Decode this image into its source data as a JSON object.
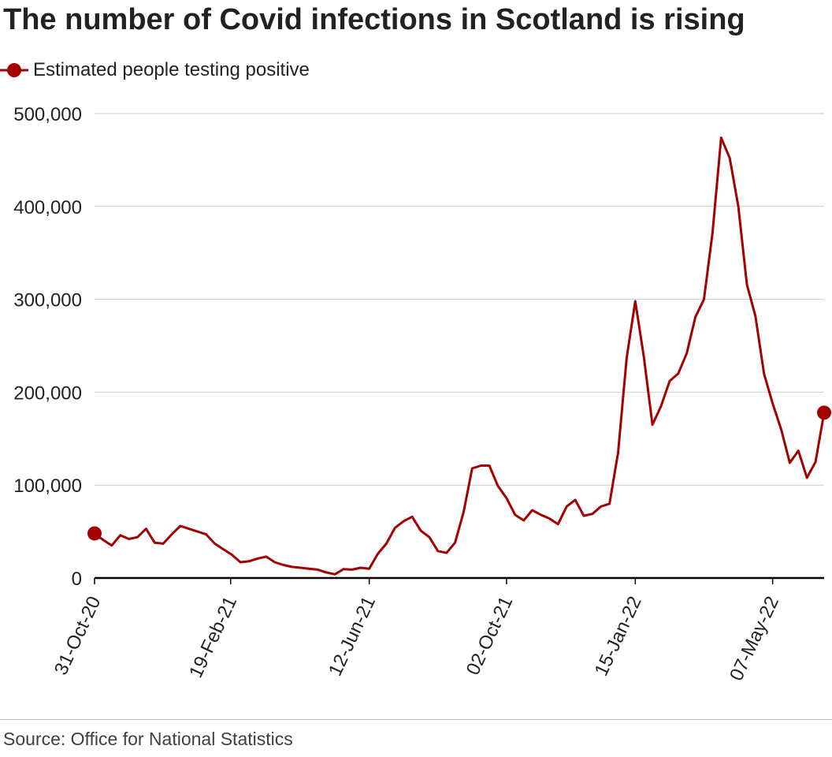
{
  "title": "The number of Covid infections in Scotland is rising",
  "legend": {
    "label": "Estimated people testing positive",
    "marker_color": "#a30000"
  },
  "source": "Source: Office for National Statistics",
  "colors": {
    "line": "#a30000",
    "grid": "#cccccc",
    "axis": "#000000"
  },
  "chart_data": {
    "type": "line",
    "title": "The number of Covid infections in Scotland is rising",
    "xlabel": "",
    "ylabel": "",
    "ylim": [
      0,
      500000
    ],
    "yticks": [
      0,
      100000,
      200000,
      300000,
      400000,
      500000
    ],
    "ytick_labels": [
      "0",
      "100,000",
      "200,000",
      "300,000",
      "400,000",
      "500,000"
    ],
    "xlim": [
      "2020-10-31",
      "2022-06-18"
    ],
    "xticks": [
      "2020-10-31",
      "2021-02-19",
      "2021-06-12",
      "2021-10-02",
      "2022-01-15",
      "2022-05-07"
    ],
    "xtick_labels": [
      "31-Oct-20",
      "19-Feb-21",
      "12-Jun-21",
      "02-Oct-21",
      "15-Jan-22",
      "07-May-22"
    ],
    "grid": true,
    "legend_position": "top-left",
    "endpoint_markers": true,
    "series": [
      {
        "name": "Estimated people testing positive",
        "x": [
          "2020-10-31",
          "2020-11-07",
          "2020-11-14",
          "2020-11-21",
          "2020-11-28",
          "2020-12-05",
          "2020-12-12",
          "2020-12-19",
          "2020-12-26",
          "2021-01-02",
          "2021-01-09",
          "2021-01-16",
          "2021-01-23",
          "2021-01-30",
          "2021-02-06",
          "2021-02-13",
          "2021-02-20",
          "2021-02-27",
          "2021-03-06",
          "2021-03-13",
          "2021-03-20",
          "2021-03-27",
          "2021-04-03",
          "2021-04-10",
          "2021-04-17",
          "2021-04-24",
          "2021-05-01",
          "2021-05-08",
          "2021-05-15",
          "2021-05-22",
          "2021-05-29",
          "2021-06-05",
          "2021-06-12",
          "2021-06-19",
          "2021-06-26",
          "2021-07-03",
          "2021-07-10",
          "2021-07-17",
          "2021-07-24",
          "2021-07-31",
          "2021-08-07",
          "2021-08-14",
          "2021-08-21",
          "2021-08-28",
          "2021-09-04",
          "2021-09-11",
          "2021-09-18",
          "2021-09-25",
          "2021-10-02",
          "2021-10-09",
          "2021-10-16",
          "2021-10-23",
          "2021-10-30",
          "2021-11-06",
          "2021-11-13",
          "2021-11-20",
          "2021-11-27",
          "2021-12-04",
          "2021-12-11",
          "2021-12-18",
          "2021-12-25",
          "2022-01-01",
          "2022-01-08",
          "2022-01-15",
          "2022-01-22",
          "2022-01-29",
          "2022-02-05",
          "2022-02-12",
          "2022-02-19",
          "2022-02-26",
          "2022-03-05",
          "2022-03-12",
          "2022-03-19",
          "2022-03-26",
          "2022-04-02",
          "2022-04-09",
          "2022-04-16",
          "2022-04-23",
          "2022-04-30",
          "2022-05-07",
          "2022-05-14",
          "2022-05-21",
          "2022-05-28",
          "2022-06-04",
          "2022-06-11",
          "2022-06-18"
        ],
        "values": [
          48000,
          41000,
          35000,
          46000,
          42000,
          44000,
          53000,
          38000,
          37000,
          47000,
          56000,
          53000,
          50000,
          47000,
          37000,
          31000,
          25000,
          17000,
          18000,
          21000,
          23000,
          17000,
          14000,
          12000,
          11000,
          10000,
          9000,
          6000,
          4000,
          9500,
          9000,
          11000,
          10000,
          26000,
          37000,
          54000,
          61000,
          66000,
          51000,
          44000,
          29000,
          27000,
          38000,
          71000,
          118000,
          121000,
          121000,
          99000,
          86000,
          68000,
          62000,
          73000,
          68000,
          64000,
          58000,
          77000,
          84000,
          67000,
          69000,
          77000,
          80000,
          135000,
          237000,
          298000,
          238000,
          165000,
          185000,
          212000,
          220000,
          242000,
          281000,
          300000,
          372000,
          474000,
          452000,
          400000,
          316000,
          282000,
          220000,
          188000,
          160000,
          124000,
          137000,
          108000,
          125000,
          178000
        ]
      }
    ]
  }
}
